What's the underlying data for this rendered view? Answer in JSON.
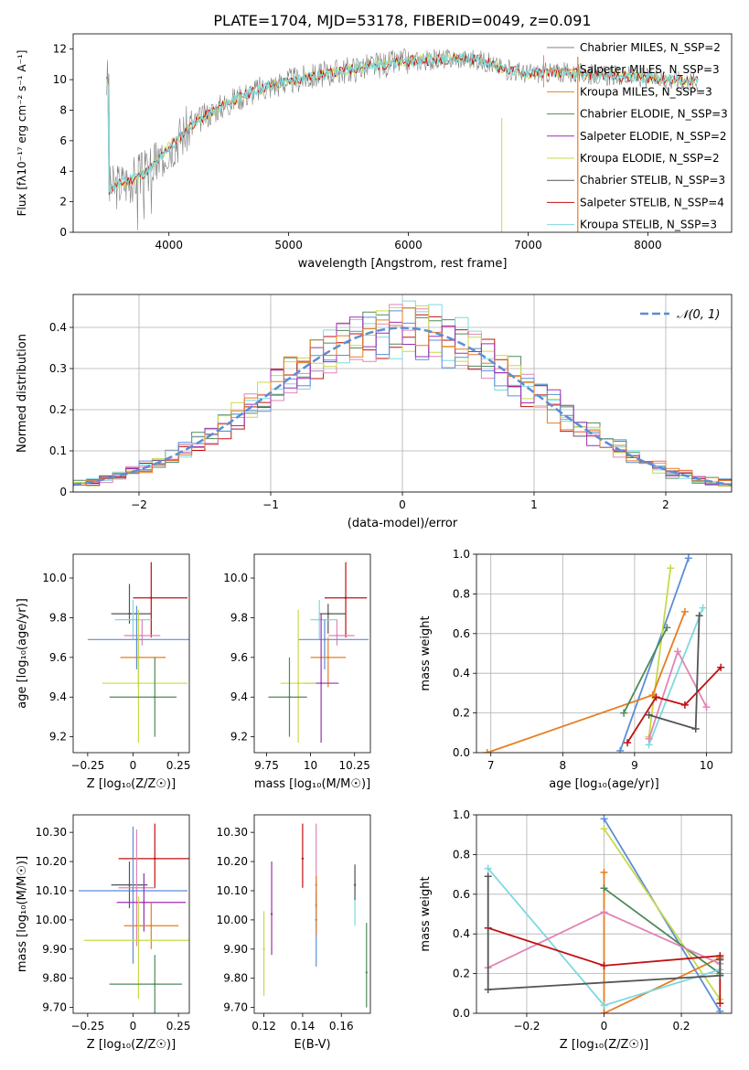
{
  "figure_title": "PLATE=1704, MJD=53178, FIBERID=0049, z=0.091",
  "colors": {
    "chabrier_miles": "#808080",
    "salpeter_miles": "#ff7f50",
    "kroupa_miles": "#e67e22",
    "chabrier_elodie": "#4e8a5a",
    "salpeter_elodie": "#9b30b0",
    "kroupa_elodie": "#c8d94a",
    "chabrier_stelib": "#555555",
    "salpeter_stelib": "#c01010",
    "kroupa_stelib": "#7fd8e0",
    "gaussian": "#5b8ed6",
    "pink": "#e085b5",
    "blue": "#5b8ed6",
    "orange": "#e67e22"
  },
  "chart_data": [
    {
      "type": "line",
      "panel": "spectrum",
      "xlabel": "wavelength [Angstrom, rest frame]",
      "ylabel": "Flux [fλ10⁻¹⁷ erg cm⁻² s⁻¹ A⁻¹]",
      "xlim": [
        3200,
        8700
      ],
      "ylim": [
        0,
        13
      ],
      "xticks": [
        4000,
        5000,
        6000,
        7000,
        8000
      ],
      "yticks": [
        0,
        2,
        4,
        6,
        8,
        10,
        12
      ],
      "continuum": {
        "x": [
          3500,
          3600,
          3700,
          3800,
          3900,
          4000,
          4100,
          4200,
          4400,
          4600,
          4800,
          5000,
          5200,
          5400,
          5600,
          5800,
          6000,
          6200,
          6400,
          6600,
          6800,
          7000,
          7200,
          7400,
          7600,
          7800,
          8000,
          8200,
          8400
        ],
        "y": [
          2.8,
          3.2,
          3.5,
          3.9,
          4.6,
          5.6,
          6.3,
          7.1,
          8.1,
          8.9,
          9.5,
          9.9,
          10.2,
          10.5,
          10.8,
          11.0,
          11.2,
          11.3,
          11.4,
          11.3,
          10.7,
          10.4,
          10.5,
          10.4,
          10.3,
          10.2,
          10.1,
          10.0,
          9.9
        ]
      },
      "legend_position": "upper right",
      "legend": [
        {
          "label": "Chabrier MILES, N_SSP=2",
          "color_key": "chabrier_miles"
        },
        {
          "label": "Salpeter MILES, N_SSP=3",
          "color_key": "salpeter_miles"
        },
        {
          "label": "Kroupa MILES, N_SSP=3",
          "color_key": "kroupa_miles"
        },
        {
          "label": "Chabrier ELODIE, N_SSP=3",
          "color_key": "chabrier_elodie"
        },
        {
          "label": "Salpeter ELODIE, N_SSP=2",
          "color_key": "salpeter_elodie"
        },
        {
          "label": "Kroupa ELODIE, N_SSP=2",
          "color_key": "kroupa_elodie"
        },
        {
          "label": "Chabrier STELIB, N_SSP=3",
          "color_key": "chabrier_stelib"
        },
        {
          "label": "Salpeter STELIB, N_SSP=4",
          "color_key": "salpeter_stelib"
        },
        {
          "label": "Kroupa STELIB, N_SSP=3",
          "color_key": "kroupa_stelib"
        }
      ]
    },
    {
      "type": "bar",
      "panel": "residual-histogram",
      "xlabel": "(data-model)/error",
      "ylabel": "Normed distribution",
      "xlim": [
        -2.5,
        2.5
      ],
      "ylim": [
        0,
        0.48
      ],
      "xticks": [
        -2,
        -1,
        0,
        1,
        2
      ],
      "yticks": [
        0.0,
        0.1,
        0.2,
        0.3,
        0.4
      ],
      "grid": true,
      "gaussian_label": "𝒩(0, 1)",
      "legend_position": "upper right",
      "bin_width": 0.1,
      "series": [
        {
          "color_key": "chabrier_elodie",
          "seed": 1
        },
        {
          "color_key": "salpeter_stelib",
          "seed": 2
        },
        {
          "color_key": "kroupa_stelib",
          "seed": 3
        },
        {
          "color_key": "pink",
          "seed": 4
        },
        {
          "color_key": "kroupa_elodie",
          "seed": 5
        },
        {
          "color_key": "blue",
          "seed": 6
        },
        {
          "color_key": "salpeter_elodie",
          "seed": 7
        },
        {
          "color_key": "orange",
          "seed": 8
        }
      ]
    },
    {
      "type": "scatter",
      "panel": "age-vs-Z",
      "xlabel": "Z [log₁₀(Z/Z☉)]",
      "ylabel": "age  [log₁₀(age/yr)]",
      "xlim": [
        -0.33,
        0.31
      ],
      "ylim": [
        9.12,
        10.12
      ],
      "xticks": [
        -0.25,
        0.0,
        0.25
      ],
      "yticks": [
        9.2,
        9.4,
        9.6,
        9.8,
        10.0
      ],
      "points": [
        {
          "x": 0.1,
          "y": 9.9,
          "xerr": [
            0.1,
            0.2
          ],
          "yerr": [
            0.2,
            0.18
          ],
          "color_key": "salpeter_stelib"
        },
        {
          "x": -0.02,
          "y": 9.82,
          "xerr": [
            0.1,
            0.12
          ],
          "yerr": [
            0.05,
            0.15
          ],
          "color_key": "chabrier_stelib"
        },
        {
          "x": 0.0,
          "y": 9.79,
          "xerr": [
            0.1,
            0.1
          ],
          "yerr": [
            0.1,
            0.1
          ],
          "color_key": "kroupa_stelib"
        },
        {
          "x": 0.05,
          "y": 9.71,
          "xerr": [
            0.1,
            0.1
          ],
          "yerr": [
            0.05,
            0.08
          ],
          "color_key": "pink"
        },
        {
          "x": 0.02,
          "y": 9.69,
          "xerr": [
            0.27,
            0.29
          ],
          "yerr": [
            0.15,
            0.17
          ],
          "color_key": "blue"
        },
        {
          "x": 0.03,
          "y": 9.6,
          "xerr": [
            0.1,
            0.15
          ],
          "yerr": [
            0.15,
            0.1
          ],
          "color_key": "orange"
        },
        {
          "x": 0.03,
          "y": 9.47,
          "xerr": [
            0.2,
            0.27
          ],
          "yerr": [
            0.3,
            0.37
          ],
          "color_key": "kroupa_elodie"
        },
        {
          "x": 0.12,
          "y": 9.4,
          "xerr": [
            0.25,
            0.12
          ],
          "yerr": [
            0.2,
            0.2
          ],
          "color_key": "chabrier_elodie"
        }
      ]
    },
    {
      "type": "scatter",
      "panel": "age-vs-mass",
      "xlabel": "mass [log₁₀(M/M☉)]",
      "ylabel": "",
      "xlim": [
        9.68,
        10.34
      ],
      "ylim": [
        9.12,
        10.12
      ],
      "xticks": [
        9.75,
        10.0,
        10.25
      ],
      "yticks": [
        9.2,
        9.4,
        9.6,
        9.8,
        10.0
      ],
      "points": [
        {
          "x": 10.2,
          "y": 9.9,
          "xerr": [
            0.12,
            0.12
          ],
          "yerr": [
            0.2,
            0.18
          ],
          "color_key": "salpeter_stelib"
        },
        {
          "x": 10.1,
          "y": 9.82,
          "xerr": [
            0.05,
            0.1
          ],
          "yerr": [
            0.1,
            0.05
          ],
          "color_key": "chabrier_stelib"
        },
        {
          "x": 10.05,
          "y": 9.79,
          "xerr": [
            0.05,
            0.1
          ],
          "yerr": [
            0.1,
            0.1
          ],
          "color_key": "kroupa_stelib"
        },
        {
          "x": 10.15,
          "y": 9.71,
          "xerr": [
            0.05,
            0.1
          ],
          "yerr": [
            0.05,
            0.08
          ],
          "color_key": "pink"
        },
        {
          "x": 10.08,
          "y": 9.69,
          "xerr": [
            0.15,
            0.25
          ],
          "yerr": [
            0.15,
            0.1
          ],
          "color_key": "blue"
        },
        {
          "x": 10.1,
          "y": 9.6,
          "xerr": [
            0.1,
            0.1
          ],
          "yerr": [
            0.15,
            0.1
          ],
          "color_key": "orange"
        },
        {
          "x": 10.06,
          "y": 9.47,
          "xerr": [
            0.1,
            0.1
          ],
          "yerr": [
            0.3,
            0.35
          ],
          "color_key": "salpeter_elodie"
        },
        {
          "x": 9.93,
          "y": 9.47,
          "xerr": [
            0.1,
            0.1
          ],
          "yerr": [
            0.3,
            0.37
          ],
          "color_key": "kroupa_elodie"
        },
        {
          "x": 9.88,
          "y": 9.4,
          "xerr": [
            0.12,
            0.1
          ],
          "yerr": [
            0.2,
            0.2
          ],
          "color_key": "chabrier_elodie"
        }
      ]
    },
    {
      "type": "line",
      "panel": "mass-weight-vs-age",
      "xlabel": "age  [log₁₀(age/yr)]",
      "ylabel": "mass weight",
      "xlim": [
        6.8,
        10.35
      ],
      "ylim": [
        0,
        1
      ],
      "xticks": [
        7,
        8,
        9,
        10
      ],
      "yticks": [
        0.0,
        0.2,
        0.4,
        0.6,
        0.8,
        1.0
      ],
      "grid": true,
      "series": [
        {
          "color_key": "blue",
          "x": [
            8.8,
            9.75
          ],
          "y": [
            0.01,
            0.98
          ]
        },
        {
          "color_key": "kroupa_elodie",
          "x": [
            9.2,
            9.5
          ],
          "y": [
            0.08,
            0.93
          ]
        },
        {
          "color_key": "orange",
          "x": [
            6.95,
            9.25,
            9.7
          ],
          "y": [
            0.0,
            0.29,
            0.71
          ]
        },
        {
          "color_key": "chabrier_elodie",
          "x": [
            8.85,
            9.45
          ],
          "y": [
            0.2,
            0.63
          ]
        },
        {
          "color_key": "kroupa_stelib",
          "x": [
            9.2,
            9.95
          ],
          "y": [
            0.04,
            0.73
          ]
        },
        {
          "color_key": "pink",
          "x": [
            9.2,
            9.6,
            10.0
          ],
          "y": [
            0.07,
            0.51,
            0.23
          ]
        },
        {
          "color_key": "salpeter_stelib",
          "x": [
            8.9,
            9.3,
            9.7,
            10.2
          ],
          "y": [
            0.05,
            0.28,
            0.24,
            0.43
          ]
        },
        {
          "color_key": "chabrier_stelib",
          "x": [
            9.2,
            9.85,
            9.9
          ],
          "y": [
            0.19,
            0.12,
            0.69
          ]
        }
      ]
    },
    {
      "type": "scatter",
      "panel": "mass-vs-Z",
      "xlabel": "Z [log₁₀(Z/Z☉)]",
      "ylabel": "mass [log₁₀(M/M☉)]",
      "xlim": [
        -0.33,
        0.31
      ],
      "ylim": [
        9.68,
        10.36
      ],
      "xticks": [
        -0.25,
        0.0,
        0.25
      ],
      "yticks": [
        9.7,
        9.8,
        9.9,
        10.0,
        10.1,
        10.2,
        10.3
      ],
      "points": [
        {
          "x": 0.12,
          "y": 10.21,
          "xerr": [
            0.2,
            0.2
          ],
          "yerr": [
            0.1,
            0.12
          ],
          "color_key": "salpeter_stelib"
        },
        {
          "x": -0.02,
          "y": 10.12,
          "xerr": [
            0.1,
            0.1
          ],
          "yerr": [
            0.08,
            0.08
          ],
          "color_key": "chabrier_stelib"
        },
        {
          "x": 0.02,
          "y": 10.11,
          "xerr": [
            0.1,
            0.1
          ],
          "yerr": [
            0.2,
            0.2
          ],
          "color_key": "pink"
        },
        {
          "x": 0.0,
          "y": 10.1,
          "xerr": [
            0.3,
            0.3
          ],
          "yerr": [
            0.25,
            0.22
          ],
          "color_key": "blue"
        },
        {
          "x": 0.06,
          "y": 10.06,
          "xerr": [
            0.15,
            0.23
          ],
          "yerr": [
            0.1,
            0.1
          ],
          "color_key": "salpeter_elodie"
        },
        {
          "x": 0.1,
          "y": 9.98,
          "xerr": [
            0.15,
            0.15
          ],
          "yerr": [
            0.08,
            0.08
          ],
          "color_key": "orange"
        },
        {
          "x": 0.03,
          "y": 9.93,
          "xerr": [
            0.3,
            0.28
          ],
          "yerr": [
            0.2,
            0.15
          ],
          "color_key": "kroupa_elodie"
        },
        {
          "x": 0.12,
          "y": 9.78,
          "xerr": [
            0.25,
            0.15
          ],
          "yerr": [
            0.1,
            0.1
          ],
          "color_key": "chabrier_elodie"
        }
      ]
    },
    {
      "type": "scatter",
      "panel": "mass-vs-ebv",
      "xlabel": "E(B-V)",
      "ylabel": "",
      "xlim": [
        0.115,
        0.175
      ],
      "ylim": [
        9.68,
        10.36
      ],
      "xticks": [
        0.12,
        0.14,
        0.16
      ],
      "yticks": [
        9.7,
        9.8,
        9.9,
        10.0,
        10.1,
        10.2,
        10.3
      ],
      "points": [
        {
          "x": 0.14,
          "y": 10.21,
          "yerr": [
            0.1,
            0.12
          ],
          "color_key": "salpeter_stelib"
        },
        {
          "x": 0.147,
          "y": 10.12,
          "yerr": [
            0.08,
            0.21
          ],
          "color_key": "pink"
        },
        {
          "x": 0.147,
          "y": 10.0,
          "yerr": [
            0.16,
            0.1
          ],
          "color_key": "blue"
        },
        {
          "x": 0.147,
          "y": 10.05,
          "yerr": [
            0.1,
            0.1
          ],
          "color_key": "orange"
        },
        {
          "x": 0.124,
          "y": 10.02,
          "yerr": [
            0.14,
            0.18
          ],
          "color_key": "salpeter_elodie"
        },
        {
          "x": 0.12,
          "y": 9.9,
          "yerr": [
            0.16,
            0.13
          ],
          "color_key": "kroupa_elodie"
        },
        {
          "x": 0.167,
          "y": 10.07,
          "yerr": [
            0.09,
            0.11
          ],
          "color_key": "kroupa_stelib"
        },
        {
          "x": 0.167,
          "y": 10.12,
          "yerr": [
            0.05,
            0.07
          ],
          "color_key": "chabrier_stelib"
        },
        {
          "x": 0.173,
          "y": 9.82,
          "yerr": [
            0.12,
            0.17
          ],
          "color_key": "chabrier_elodie"
        }
      ]
    },
    {
      "type": "line",
      "panel": "mass-weight-vs-Z",
      "xlabel": "Z [log₁₀(Z/Z☉)]",
      "ylabel": "mass weight",
      "xlim": [
        -0.33,
        0.33
      ],
      "ylim": [
        0,
        1
      ],
      "xticks": [
        -0.2,
        0.0,
        0.2
      ],
      "yticks": [
        0.0,
        0.2,
        0.4,
        0.6,
        0.8,
        1.0
      ],
      "grid": true,
      "series": [
        {
          "color_key": "blue",
          "x": [
            0.0,
            0.3
          ],
          "y": [
            0.98,
            0.01
          ]
        },
        {
          "color_key": "kroupa_elodie",
          "x": [
            0.0,
            0.3
          ],
          "y": [
            0.93,
            0.07
          ]
        },
        {
          "color_key": "orange",
          "x": [
            0.0,
            0.0,
            0.3,
            0.3
          ],
          "y": [
            0.71,
            0.0,
            0.28,
            0.27
          ]
        },
        {
          "color_key": "chabrier_elodie",
          "x": [
            0.0,
            0.3
          ],
          "y": [
            0.63,
            0.2
          ]
        },
        {
          "color_key": "kroupa_stelib",
          "x": [
            -0.3,
            0.0,
            0.3
          ],
          "y": [
            0.73,
            0.04,
            0.22
          ]
        },
        {
          "color_key": "pink",
          "x": [
            -0.3,
            0.0,
            0.3
          ],
          "y": [
            0.23,
            0.51,
            0.25
          ]
        },
        {
          "color_key": "salpeter_stelib",
          "x": [
            -0.3,
            0.0,
            0.3,
            0.3
          ],
          "y": [
            0.43,
            0.24,
            0.29,
            0.05
          ]
        },
        {
          "color_key": "chabrier_stelib",
          "x": [
            -0.3,
            -0.3,
            0.3,
            0.3
          ],
          "y": [
            0.69,
            0.12,
            0.19,
            0.27
          ]
        }
      ]
    }
  ]
}
